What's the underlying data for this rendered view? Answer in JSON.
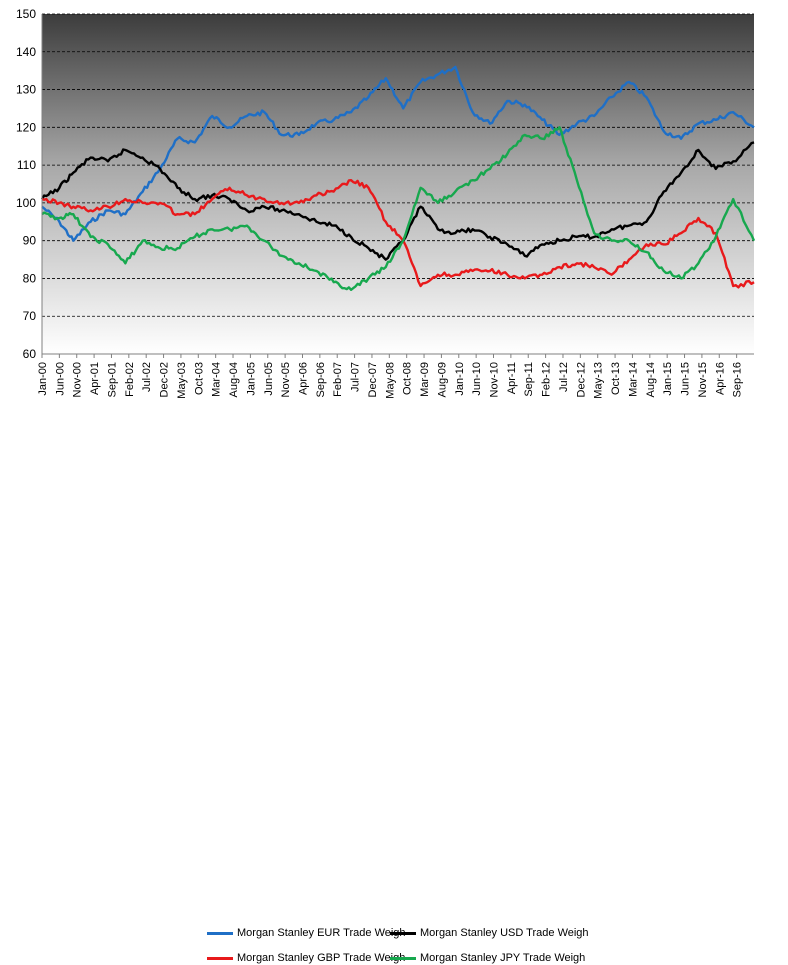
{
  "chart_data": {
    "type": "line",
    "title": "",
    "xlabel": "",
    "ylabel": "",
    "ylim": [
      60,
      150
    ],
    "yticks": [
      60,
      70,
      80,
      90,
      100,
      110,
      120,
      130,
      140,
      150
    ],
    "x_tick_labels": [
      "Jan-00",
      "Jun-00",
      "Nov-00",
      "Apr-01",
      "Sep-01",
      "Feb-02",
      "Jul-02",
      "Dec-02",
      "May-03",
      "Oct-03",
      "Mar-04",
      "Aug-04",
      "Jan-05",
      "Jun-05",
      "Nov-05",
      "Apr-06",
      "Sep-06",
      "Feb-07",
      "Jul-07",
      "Dec-07",
      "May-08",
      "Oct-08",
      "Mar-09",
      "Aug-09",
      "Jan-10",
      "Jun-10",
      "Nov-10",
      "Apr-11",
      "Sep-11",
      "Feb-12",
      "Jul-12",
      "Dec-12",
      "May-13",
      "Oct-13",
      "Mar-14",
      "Aug-14",
      "Jan-15",
      "Jun-15",
      "Nov-15",
      "Apr-16",
      "Sep-16"
    ],
    "x_start": "2000-01",
    "x_end": "2017-02",
    "grid": "horizontal dashed",
    "legend_position": "bottom",
    "background": "gradient dark-gray to white",
    "series": [
      {
        "name": "Morgan Stanley EUR Trade Weigh",
        "color": "#1f6fc6",
        "x": [
          "2000-01",
          "2000-06",
          "2000-10",
          "2001-03",
          "2001-08",
          "2002-01",
          "2002-06",
          "2002-11",
          "2003-04",
          "2003-09",
          "2004-02",
          "2004-07",
          "2004-12",
          "2005-05",
          "2005-10",
          "2006-03",
          "2006-08",
          "2007-01",
          "2007-06",
          "2007-11",
          "2008-04",
          "2008-09",
          "2009-02",
          "2009-07",
          "2009-12",
          "2010-05",
          "2010-10",
          "2011-03",
          "2011-08",
          "2012-01",
          "2012-06",
          "2012-11",
          "2013-04",
          "2013-09",
          "2014-02",
          "2014-07",
          "2014-12",
          "2015-05",
          "2015-10",
          "2016-03",
          "2016-08",
          "2017-02"
        ],
        "values": [
          99,
          95,
          90,
          95,
          98,
          97,
          103,
          109,
          117,
          116,
          123,
          120,
          123,
          124,
          118,
          118,
          121,
          122,
          124,
          128,
          133,
          125,
          132,
          134,
          136,
          124,
          121,
          127,
          126,
          122,
          118,
          121,
          123,
          128,
          132,
          128,
          119,
          117,
          121,
          122,
          124,
          120
        ]
      },
      {
        "name": "Morgan Stanley USD Trade Weigh",
        "color": "#000000",
        "x": [
          "2000-01",
          "2000-06",
          "2000-10",
          "2001-03",
          "2001-08",
          "2002-01",
          "2002-06",
          "2002-11",
          "2003-04",
          "2003-09",
          "2004-02",
          "2004-07",
          "2004-12",
          "2005-05",
          "2005-10",
          "2006-03",
          "2006-08",
          "2007-01",
          "2007-06",
          "2007-11",
          "2008-04",
          "2008-09",
          "2009-02",
          "2009-07",
          "2009-12",
          "2010-05",
          "2010-10",
          "2011-03",
          "2011-08",
          "2012-01",
          "2012-06",
          "2012-11",
          "2013-04",
          "2013-09",
          "2014-02",
          "2014-07",
          "2014-12",
          "2015-05",
          "2015-10",
          "2016-03",
          "2016-08",
          "2017-02"
        ],
        "values": [
          101,
          104,
          108,
          112,
          111,
          114,
          112,
          109,
          104,
          101,
          102,
          101,
          98,
          99,
          98,
          97,
          95,
          94,
          91,
          88,
          85,
          90,
          99,
          93,
          92,
          93,
          91,
          89,
          86,
          89,
          90,
          91,
          91,
          93,
          94,
          95,
          103,
          108,
          114,
          109,
          111,
          116
        ]
      },
      {
        "name": "Morgan Stanley GBP Trade Weigh",
        "color": "#e8191b",
        "x": [
          "2000-01",
          "2000-06",
          "2000-10",
          "2001-03",
          "2001-08",
          "2002-01",
          "2002-06",
          "2002-11",
          "2003-04",
          "2003-09",
          "2004-02",
          "2004-07",
          "2004-12",
          "2005-05",
          "2005-10",
          "2006-03",
          "2006-08",
          "2007-01",
          "2007-06",
          "2007-11",
          "2008-04",
          "2008-09",
          "2009-02",
          "2009-07",
          "2009-12",
          "2010-05",
          "2010-10",
          "2011-03",
          "2011-08",
          "2012-01",
          "2012-06",
          "2012-11",
          "2013-04",
          "2013-09",
          "2014-02",
          "2014-07",
          "2014-12",
          "2015-05",
          "2015-10",
          "2016-03",
          "2016-08",
          "2017-02"
        ],
        "values": [
          101,
          100,
          99,
          98,
          99,
          101,
          100,
          100,
          97,
          97,
          101,
          104,
          102,
          101,
          100,
          100,
          102,
          103,
          106,
          104,
          95,
          90,
          78,
          81,
          81,
          82,
          82,
          81,
          80,
          81,
          83,
          84,
          83,
          81,
          85,
          89,
          89,
          92,
          96,
          92,
          78,
          79
        ]
      },
      {
        "name": "Morgan Stanley JPY Trade Weigh",
        "color": "#17a84e",
        "x": [
          "2000-01",
          "2000-06",
          "2000-10",
          "2001-03",
          "2001-08",
          "2002-01",
          "2002-06",
          "2002-11",
          "2003-04",
          "2003-09",
          "2004-02",
          "2004-07",
          "2004-12",
          "2005-05",
          "2005-10",
          "2006-03",
          "2006-08",
          "2007-01",
          "2007-06",
          "2007-11",
          "2008-04",
          "2008-09",
          "2009-02",
          "2009-07",
          "2009-12",
          "2010-05",
          "2010-10",
          "2011-03",
          "2011-08",
          "2012-01",
          "2012-06",
          "2012-11",
          "2013-04",
          "2013-09",
          "2014-02",
          "2014-07",
          "2014-12",
          "2015-05",
          "2015-10",
          "2016-03",
          "2016-08",
          "2017-02"
        ],
        "values": [
          97,
          96,
          97,
          91,
          89,
          84,
          90,
          88,
          88,
          91,
          93,
          93,
          94,
          90,
          86,
          84,
          82,
          79,
          77,
          80,
          83,
          90,
          104,
          100,
          103,
          106,
          109,
          113,
          118,
          117,
          120,
          106,
          92,
          90,
          90,
          87,
          82,
          80,
          84,
          91,
          101,
          90
        ]
      }
    ]
  }
}
